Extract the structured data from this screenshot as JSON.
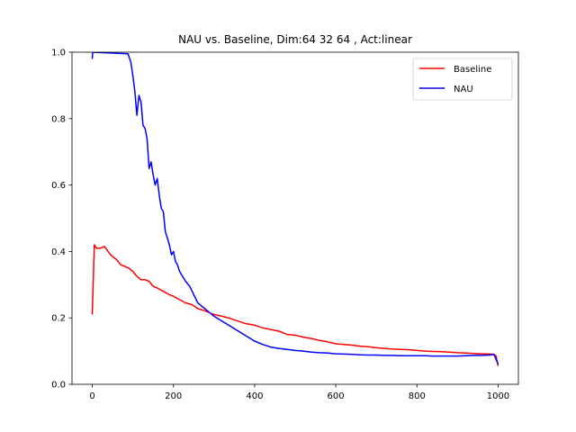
{
  "chart_data": {
    "type": "line",
    "title": "NAU vs. Baseline, Dim:64 32 64 , Act:linear",
    "xlabel": "",
    "ylabel": "",
    "xlim": [
      -50,
      1050
    ],
    "ylim": [
      0.0,
      1.0
    ],
    "xticks": [
      0,
      200,
      400,
      600,
      800,
      1000
    ],
    "yticks": [
      0.0,
      0.2,
      0.4,
      0.6,
      0.8,
      1.0
    ],
    "xtick_labels": [
      "0",
      "200",
      "400",
      "600",
      "800",
      "1000"
    ],
    "ytick_labels": [
      "0.0",
      "0.2",
      "0.4",
      "0.6",
      "0.8",
      "1.0"
    ],
    "grid": false,
    "legend_position": "top-right",
    "series": [
      {
        "name": "Baseline",
        "color": "#ff0000",
        "x": [
          0,
          5,
          10,
          20,
          30,
          45,
          60,
          70,
          80,
          90,
          100,
          110,
          120,
          130,
          140,
          150,
          160,
          175,
          190,
          200,
          215,
          230,
          245,
          260,
          280,
          300,
          320,
          340,
          360,
          380,
          400,
          420,
          440,
          460,
          480,
          500,
          520,
          540,
          560,
          580,
          600,
          620,
          640,
          660,
          680,
          700,
          720,
          740,
          760,
          780,
          800,
          820,
          840,
          860,
          880,
          900,
          920,
          940,
          960,
          980,
          990,
          995,
          1000
        ],
        "values": [
          0.21,
          0.42,
          0.41,
          0.41,
          0.415,
          0.39,
          0.375,
          0.36,
          0.355,
          0.35,
          0.34,
          0.325,
          0.315,
          0.315,
          0.31,
          0.295,
          0.29,
          0.28,
          0.27,
          0.265,
          0.255,
          0.245,
          0.24,
          0.228,
          0.22,
          0.21,
          0.205,
          0.198,
          0.19,
          0.182,
          0.178,
          0.17,
          0.165,
          0.16,
          0.15,
          0.148,
          0.142,
          0.138,
          0.132,
          0.128,
          0.122,
          0.12,
          0.118,
          0.115,
          0.113,
          0.11,
          0.108,
          0.106,
          0.105,
          0.104,
          0.102,
          0.1,
          0.099,
          0.098,
          0.097,
          0.095,
          0.094,
          0.093,
          0.092,
          0.091,
          0.09,
          0.085,
          0.055
        ]
      },
      {
        "name": "NAU",
        "color": "#0000ff",
        "x": [
          0,
          1,
          88,
          95,
          100,
          105,
          110,
          115,
          120,
          125,
          130,
          135,
          140,
          145,
          150,
          155,
          160,
          165,
          170,
          175,
          180,
          185,
          190,
          195,
          200,
          205,
          210,
          215,
          220,
          230,
          240,
          250,
          260,
          270,
          280,
          290,
          300,
          320,
          340,
          360,
          380,
          400,
          420,
          440,
          460,
          480,
          500,
          520,
          540,
          560,
          580,
          600,
          620,
          640,
          660,
          680,
          700,
          720,
          740,
          760,
          780,
          800,
          820,
          840,
          860,
          880,
          900,
          920,
          940,
          960,
          980,
          990,
          995,
          1000
        ],
        "values": [
          0.98,
          1.0,
          0.995,
          0.97,
          0.93,
          0.88,
          0.81,
          0.87,
          0.85,
          0.78,
          0.77,
          0.74,
          0.65,
          0.67,
          0.63,
          0.6,
          0.62,
          0.57,
          0.53,
          0.52,
          0.46,
          0.44,
          0.42,
          0.39,
          0.4,
          0.37,
          0.36,
          0.34,
          0.33,
          0.31,
          0.295,
          0.27,
          0.245,
          0.235,
          0.225,
          0.215,
          0.205,
          0.19,
          0.175,
          0.16,
          0.145,
          0.13,
          0.12,
          0.112,
          0.108,
          0.105,
          0.102,
          0.1,
          0.097,
          0.095,
          0.094,
          0.092,
          0.091,
          0.09,
          0.089,
          0.088,
          0.088,
          0.087,
          0.087,
          0.086,
          0.086,
          0.086,
          0.086,
          0.085,
          0.085,
          0.085,
          0.085,
          0.086,
          0.087,
          0.087,
          0.088,
          0.09,
          0.075,
          0.06
        ]
      }
    ]
  }
}
